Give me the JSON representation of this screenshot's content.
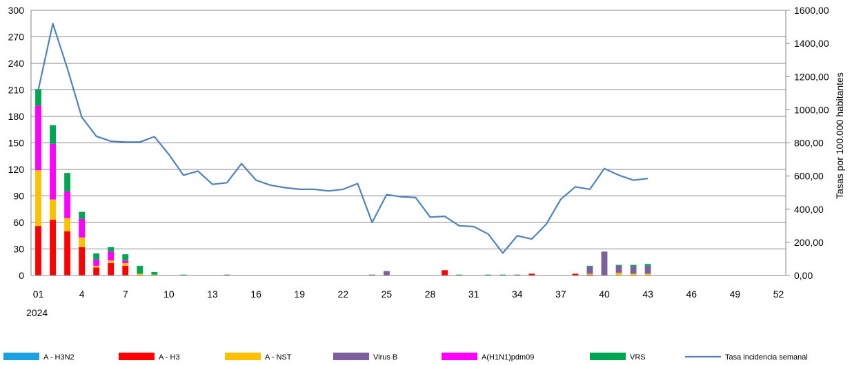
{
  "chart_data": {
    "type": "bar",
    "title": "",
    "xlabel": "",
    "x_year_label": "2024",
    "ylabel_left": "",
    "ylabel_right": "Tasas  por 100.000 habitantes",
    "ylim_left": [
      0,
      300
    ],
    "ylim_right": [
      0,
      1600
    ],
    "grid": true,
    "legend_position": "bottom",
    "x_tick_labels": [
      "01",
      "4",
      "7",
      "10",
      "13",
      "16",
      "19",
      "22",
      "25",
      "28",
      "31",
      "34",
      "37",
      "40",
      "43",
      "46",
      "49",
      "52"
    ],
    "y_left_ticks": [
      "0",
      "30",
      "60",
      "90",
      "120",
      "150",
      "180",
      "210",
      "240",
      "270",
      "300"
    ],
    "y_right_ticks": [
      "0,00",
      "200,00",
      "400,00",
      "600,00",
      "800,00",
      "1000,00",
      "1200,00",
      "1400,00",
      "1600,00"
    ],
    "weeks": [
      1,
      2,
      3,
      4,
      5,
      6,
      7,
      8,
      9,
      10,
      11,
      12,
      13,
      14,
      15,
      16,
      17,
      18,
      19,
      20,
      21,
      22,
      23,
      24,
      25,
      26,
      27,
      28,
      29,
      30,
      31,
      32,
      33,
      34,
      35,
      36,
      37,
      38,
      39,
      40,
      41,
      42,
      43,
      44,
      45,
      46,
      47,
      48,
      49,
      50,
      51,
      52
    ],
    "series": [
      {
        "name": "A - H3N2",
        "color": "#1ba1e2",
        "kind": "bar",
        "values": [
          0,
          0,
          0,
          0,
          0,
          0,
          0,
          0,
          0,
          0,
          0,
          0,
          0,
          0,
          0,
          0,
          0,
          0,
          0,
          0,
          0,
          0,
          0,
          0,
          0,
          0,
          0,
          0,
          0,
          0,
          0,
          0,
          0,
          0,
          0,
          0,
          0,
          0,
          0,
          0,
          0,
          0,
          0,
          0,
          0,
          0,
          0,
          0,
          0,
          0,
          0,
          0
        ]
      },
      {
        "name": "A - H3",
        "color": "#ff0000",
        "kind": "bar",
        "values": [
          56,
          63,
          50,
          32,
          9,
          14,
          11,
          0,
          0,
          0,
          0,
          0,
          0,
          0,
          0,
          0,
          0,
          0,
          0,
          0,
          0,
          0,
          0,
          0,
          0,
          0,
          0,
          0,
          6,
          0,
          0,
          0,
          0,
          0,
          2,
          0,
          0,
          2,
          1,
          0,
          0,
          0,
          0,
          0,
          0,
          0,
          0,
          0,
          0,
          0,
          0,
          0
        ]
      },
      {
        "name": "A - NST",
        "color": "#ffc000",
        "kind": "bar",
        "values": [
          63,
          23,
          15,
          11,
          2,
          3,
          3,
          2,
          1,
          0,
          0,
          0,
          0,
          0,
          0,
          0,
          0,
          0,
          0,
          0,
          0,
          0,
          0,
          0,
          0,
          0,
          0,
          0,
          0,
          0,
          0,
          0,
          0,
          0,
          0,
          0,
          0,
          0,
          1,
          0,
          3,
          2,
          2,
          0,
          0,
          0,
          0,
          0,
          0,
          0,
          0,
          0
        ]
      },
      {
        "name": "Virus B",
        "color": "#7b5f9e",
        "kind": "bar",
        "values": [
          0,
          0,
          0,
          0,
          0,
          0,
          0,
          0,
          0,
          0,
          0,
          0,
          0,
          1,
          0,
          0,
          0,
          0,
          0,
          0,
          0,
          0,
          0,
          1,
          5,
          0,
          0,
          0,
          0,
          0,
          0,
          0,
          0,
          1,
          0,
          0,
          0,
          0,
          8,
          27,
          8,
          8,
          9,
          0,
          0,
          0,
          0,
          0,
          0,
          0,
          0,
          0
        ]
      },
      {
        "name": "A(H1N1)pdm09",
        "color": "#ff00ff",
        "kind": "bar",
        "values": [
          73,
          63,
          30,
          21,
          7,
          10,
          3,
          0,
          0,
          0,
          0,
          0,
          0,
          0,
          0,
          0,
          0,
          0,
          0,
          0,
          0,
          0,
          0,
          0,
          0,
          0,
          0,
          0,
          0,
          0,
          0,
          0,
          0,
          0,
          0,
          0,
          0,
          0,
          0,
          0,
          0,
          0,
          0,
          0,
          0,
          0,
          0,
          0,
          0,
          0,
          0,
          0
        ]
      },
      {
        "name": "VRS",
        "color": "#00a651",
        "kind": "bar",
        "values": [
          19,
          21,
          21,
          8,
          7,
          5,
          7,
          9,
          3,
          0,
          1,
          0,
          0,
          0,
          0,
          0,
          0,
          0,
          0,
          0,
          0,
          0,
          0,
          0,
          0,
          0,
          0,
          0,
          0,
          1,
          0,
          1,
          1,
          0,
          0,
          0,
          0,
          0,
          1,
          0,
          1,
          2,
          2,
          0,
          0,
          0,
          0,
          0,
          0,
          0,
          0,
          0
        ]
      },
      {
        "name": "Tasa incidencia semanal",
        "color": "#4f81bd",
        "kind": "line",
        "axis": "right",
        "values": [
          1120,
          1520,
          1250,
          955,
          840,
          810,
          805,
          805,
          838,
          730,
          605,
          630,
          550,
          560,
          675,
          575,
          545,
          530,
          520,
          520,
          510,
          520,
          555,
          320,
          488,
          475,
          470,
          352,
          357,
          300,
          295,
          250,
          135,
          240,
          220,
          310,
          460,
          535,
          520,
          645,
          605,
          575,
          585,
          null,
          null,
          null,
          null,
          null,
          null,
          null,
          null,
          null
        ]
      }
    ]
  }
}
